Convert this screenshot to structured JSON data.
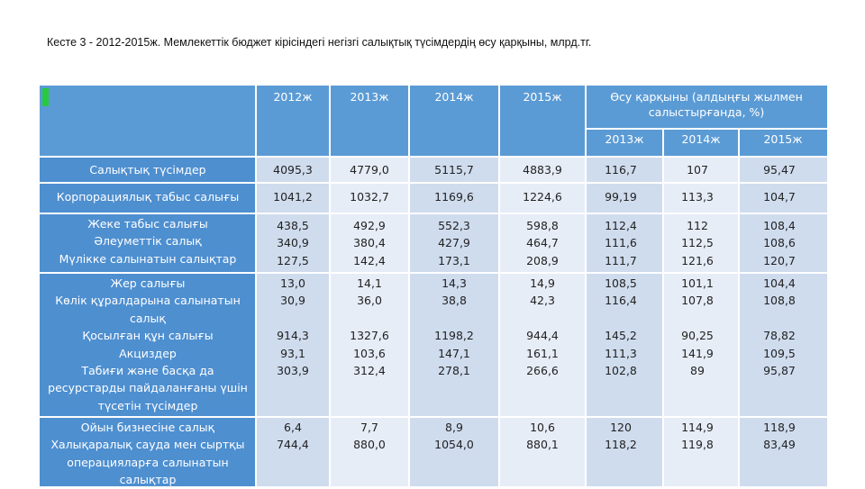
{
  "caption": "Кесте 3 - 2012-2015ж. Мемлекеттік бюджет кірісіндегі негізгі салықтық түсімдердің өсу қарқыны, млрд.тг.",
  "colors": {
    "header_bg": "#5b9bd5",
    "label_bg": "#4e8fd0",
    "cell_a": "#cfdcee",
    "cell_b": "#e7edf7",
    "marker": "#27c93f"
  },
  "header": {
    "years": [
      "2012ж",
      "2013ж",
      "2014ж",
      "2015ж"
    ],
    "growth_title": "Өсу қарқыны (алдыңғы жылмен салыстырғанда, %)",
    "growth_years": [
      "2013ж",
      "2014ж",
      "2015ж"
    ]
  },
  "rows": [
    {
      "labels": [
        "Салықтық түсімдер"
      ],
      "c2012": [
        "4095,3"
      ],
      "c2013": [
        "4779,0"
      ],
      "c2014": [
        "5115,7"
      ],
      "c2015": [
        "4883,9"
      ],
      "g2013": [
        "116,7"
      ],
      "g2014": [
        "107"
      ],
      "g2015": [
        "95,47"
      ]
    },
    {
      "labels": [
        "Корпорациялық табыс салығы"
      ],
      "c2012": [
        "1041,2"
      ],
      "c2013": [
        "1032,7"
      ],
      "c2014": [
        "1169,6"
      ],
      "c2015": [
        "1224,6"
      ],
      "g2013": [
        "99,19"
      ],
      "g2014": [
        "113,3"
      ],
      "g2015": [
        "104,7"
      ]
    },
    {
      "labels": [
        "Жеке табыс салығы",
        "Әлеуметтік салық",
        "Мүлікке салынатын салықтар"
      ],
      "c2012": [
        "438,5",
        "340,9",
        "127,5"
      ],
      "c2013": [
        "492,9",
        "380,4",
        "142,4"
      ],
      "c2014": [
        "552,3",
        "427,9",
        "173,1"
      ],
      "c2015": [
        "598,8",
        "464,7",
        "208,9"
      ],
      "g2013": [
        "112,4",
        "111,6",
        "111,7"
      ],
      "g2014": [
        "112",
        "112,5",
        "121,6"
      ],
      "g2015": [
        "108,4",
        "108,6",
        "120,7"
      ]
    },
    {
      "labels": [
        "Жер салығы",
        "Көлік құралдарына салынатын",
        "салық",
        "Қосылған құн салығы",
        "Акциздер",
        "Табиғи және басқа да",
        "ресурстарды пайдаланғаны үшін",
        "түсетін түсімдер"
      ],
      "c2012": [
        "13,0",
        "30,9",
        "",
        "914,3",
        "93,1",
        "303,9"
      ],
      "c2013": [
        "14,1",
        "36,0",
        "",
        "1327,6",
        "103,6",
        "312,4"
      ],
      "c2014": [
        "14,3",
        "38,8",
        "",
        "1198,2",
        "147,1",
        "278,1"
      ],
      "c2015": [
        "14,9",
        "42,3",
        "",
        "944,4",
        "161,1",
        "266,6"
      ],
      "g2013": [
        "108,5",
        "116,4",
        "",
        "145,2",
        "111,3",
        "102,8"
      ],
      "g2014": [
        "101,1",
        "107,8",
        "",
        "90,25",
        "141,9",
        "89"
      ],
      "g2015": [
        "104,4",
        "108,8",
        "",
        "78,82",
        "109,5",
        "95,87"
      ]
    },
    {
      "labels": [
        "Ойын бизнесіне салық",
        "Халықаралық сауда мен сыртқы",
        "операцияларға салынатын",
        "салықтар"
      ],
      "c2012": [
        "6,4",
        "744,4"
      ],
      "c2013": [
        "7,7",
        "880,0"
      ],
      "c2014": [
        "8,9",
        "1054,0"
      ],
      "c2015": [
        "10,6",
        "880,1"
      ],
      "g2013": [
        "120",
        "118,2"
      ],
      "g2014": [
        "114,9",
        "119,8"
      ],
      "g2015": [
        "118,9",
        "83,49"
      ]
    }
  ]
}
